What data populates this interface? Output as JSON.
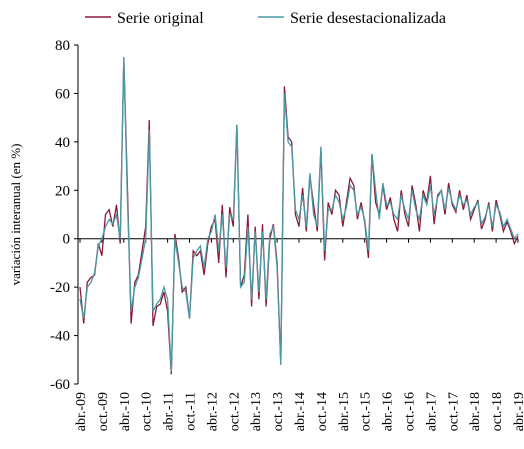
{
  "chart_data": {
    "type": "line",
    "y_label": "variación interanual (en %)",
    "categories": [
      "abr.-09",
      null,
      null,
      null,
      null,
      null,
      "oct.-09",
      null,
      null,
      null,
      null,
      null,
      "abr.-10",
      null,
      null,
      null,
      null,
      null,
      "oct.-10",
      null,
      null,
      null,
      null,
      null,
      "abr.-11",
      null,
      null,
      null,
      null,
      null,
      "oct.-11",
      null,
      null,
      null,
      null,
      null,
      "abr.-12",
      null,
      null,
      null,
      null,
      null,
      "oct.-12",
      null,
      null,
      null,
      null,
      null,
      "abr.-13",
      null,
      null,
      null,
      null,
      null,
      "oct.-13",
      null,
      null,
      null,
      null,
      null,
      "abr.-14",
      null,
      null,
      null,
      null,
      null,
      "oct.-14",
      null,
      null,
      null,
      null,
      null,
      "abr.-15",
      null,
      null,
      null,
      null,
      null,
      "oct.-15",
      null,
      null,
      null,
      null,
      null,
      "abr.-16",
      null,
      null,
      null,
      null,
      null,
      "oct.-16",
      null,
      null,
      null,
      null,
      null,
      "abr.-17",
      null,
      null,
      null,
      null,
      null,
      "oct.-17",
      null,
      null,
      null,
      null,
      null,
      "abr.-18",
      null,
      null,
      null,
      null,
      null,
      "oct.-18",
      null,
      null,
      null,
      null,
      null,
      "abr.-19"
    ],
    "series": [
      {
        "name": "Serie original",
        "color": "#8b1a3a",
        "values": [
          -20,
          -35,
          -18,
          -16,
          -15,
          -2,
          -7,
          10,
          12,
          5,
          14,
          -2,
          75,
          20,
          -35,
          -18,
          -15,
          -5,
          5,
          49,
          -36,
          -28,
          -27,
          -22,
          -30,
          -56,
          2,
          -8,
          -22,
          -20,
          -33,
          -5,
          -7,
          -5,
          -15,
          -2,
          5,
          8,
          -10,
          14,
          -16,
          13,
          5,
          47,
          -20,
          -15,
          10,
          -28,
          5,
          -25,
          6,
          -28,
          0,
          6,
          -10,
          -52,
          63,
          42,
          40,
          10,
          5,
          21,
          3,
          26,
          14,
          3,
          37,
          -9,
          15,
          10,
          20,
          18,
          5,
          15,
          25,
          22,
          8,
          15,
          7,
          -8,
          35,
          15,
          10,
          22,
          12,
          17,
          8,
          3,
          20,
          10,
          5,
          22,
          14,
          3,
          20,
          15,
          26,
          6,
          18,
          20,
          10,
          23,
          14,
          11,
          20,
          12,
          18,
          8,
          12,
          16,
          4,
          8,
          15,
          3,
          16,
          10,
          3,
          7,
          3,
          -2,
          1
        ]
      },
      {
        "name": "Serie desestacionalizada",
        "color": "#4a9aa5",
        "values": [
          -25,
          -33,
          -20,
          -18,
          -14,
          -3,
          0,
          5,
          8,
          6,
          10,
          0,
          75,
          15,
          -30,
          -20,
          -16,
          -8,
          0,
          45,
          -30,
          -27,
          -25,
          -20,
          -25,
          -55,
          0,
          -10,
          -20,
          -22,
          -33,
          -8,
          -5,
          -3,
          -12,
          0,
          3,
          10,
          -5,
          10,
          -12,
          10,
          8,
          47,
          -20,
          -18,
          5,
          -25,
          3,
          -22,
          3,
          -25,
          2,
          5,
          -12,
          -52,
          60,
          40,
          38,
          12,
          8,
          18,
          5,
          27,
          10,
          5,
          38,
          -5,
          12,
          12,
          18,
          15,
          8,
          13,
          22,
          20,
          10,
          13,
          8,
          -5,
          35,
          20,
          8,
          23,
          14,
          15,
          10,
          8,
          18,
          12,
          8,
          20,
          12,
          8,
          18,
          14,
          22,
          10,
          17,
          20,
          12,
          21,
          15,
          12,
          18,
          14,
          16,
          10,
          13,
          15,
          6,
          9,
          14,
          5,
          14,
          11,
          5,
          8,
          4,
          0,
          2
        ]
      }
    ],
    "ylim": [
      -60,
      80
    ],
    "yticks": [
      -60,
      -40,
      -20,
      0,
      20,
      40,
      60,
      80
    ]
  }
}
